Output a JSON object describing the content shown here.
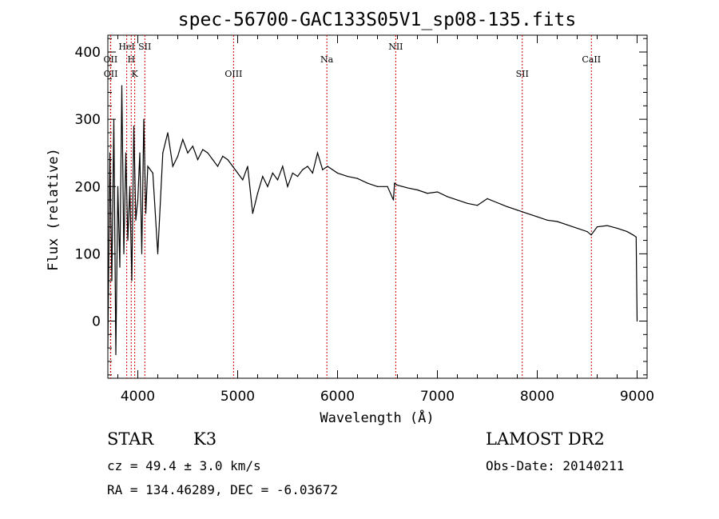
{
  "chart_data": {
    "type": "line",
    "title": "spec-56700-GAC133S05V1_sp08-135.fits",
    "xlabel": "Wavelength (Å)",
    "ylabel": "Flux (relative)",
    "xlim": [
      3700,
      9100
    ],
    "ylim": [
      -85,
      425
    ],
    "x_ticks": [
      4000,
      5000,
      6000,
      7000,
      8000,
      9000
    ],
    "y_ticks": [
      0,
      100,
      200,
      300,
      400
    ],
    "series": [
      {
        "name": "flux",
        "x": [
          3700,
          3720,
          3740,
          3760,
          3780,
          3800,
          3820,
          3840,
          3860,
          3880,
          3900,
          3920,
          3940,
          3960,
          3980,
          4000,
          4020,
          4040,
          4060,
          4080,
          4100,
          4150,
          4200,
          4250,
          4300,
          4350,
          4400,
          4450,
          4500,
          4550,
          4600,
          4650,
          4700,
          4750,
          4800,
          4850,
          4900,
          4950,
          5000,
          5050,
          5100,
          5150,
          5200,
          5250,
          5300,
          5350,
          5400,
          5450,
          5500,
          5550,
          5600,
          5650,
          5700,
          5750,
          5800,
          5850,
          5900,
          5950,
          6000,
          6100,
          6200,
          6300,
          6400,
          6500,
          6560,
          6570,
          6600,
          6700,
          6800,
          6900,
          7000,
          7100,
          7200,
          7300,
          7400,
          7500,
          7600,
          7700,
          7800,
          7900,
          8000,
          8100,
          8200,
          8300,
          8400,
          8500,
          8540,
          8600,
          8700,
          8800,
          8900,
          8960,
          8990,
          9000
        ],
        "y": [
          -40,
          250,
          60,
          300,
          -50,
          200,
          80,
          350,
          100,
          250,
          120,
          200,
          60,
          290,
          150,
          180,
          250,
          100,
          300,
          160,
          230,
          220,
          100,
          250,
          280,
          230,
          245,
          270,
          250,
          260,
          240,
          255,
          250,
          240,
          230,
          245,
          240,
          230,
          220,
          210,
          230,
          160,
          190,
          215,
          200,
          220,
          210,
          230,
          200,
          220,
          215,
          225,
          230,
          220,
          250,
          225,
          230,
          225,
          220,
          215,
          212,
          205,
          200,
          200,
          180,
          205,
          202,
          198,
          195,
          190,
          192,
          185,
          180,
          175,
          172,
          182,
          176,
          170,
          165,
          160,
          155,
          150,
          148,
          143,
          138,
          133,
          128,
          140,
          142,
          138,
          133,
          128,
          125,
          0
        ]
      }
    ],
    "lines": [
      {
        "label": "OII",
        "x": 3727
      },
      {
        "label": "OII",
        "x": 3729
      },
      {
        "label": "HeI",
        "x": 3889
      },
      {
        "label": "H",
        "x": 3934
      },
      {
        "label": "K",
        "x": 3969
      },
      {
        "label": "SII",
        "x": 4070
      },
      {
        "label": "OIII",
        "x": 4959
      },
      {
        "label": "Na",
        "x": 5893
      },
      {
        "label": "NII",
        "x": 6583
      },
      {
        "label": "SII",
        "x": 7850
      },
      {
        "label": "CaII",
        "x": 8542
      }
    ]
  },
  "info": {
    "object_class": "STAR",
    "subclass": "K3",
    "survey": "LAMOST DR2",
    "cz": "cz = 49.4 ± 3.0 km/s",
    "obs_date": "Obs-Date: 20140211",
    "coords": "RA = 134.46289, DEC =  -6.03672"
  },
  "colors": {
    "spectrum": "#000000",
    "line_markers": "#cc0000",
    "background": "#ffffff"
  }
}
